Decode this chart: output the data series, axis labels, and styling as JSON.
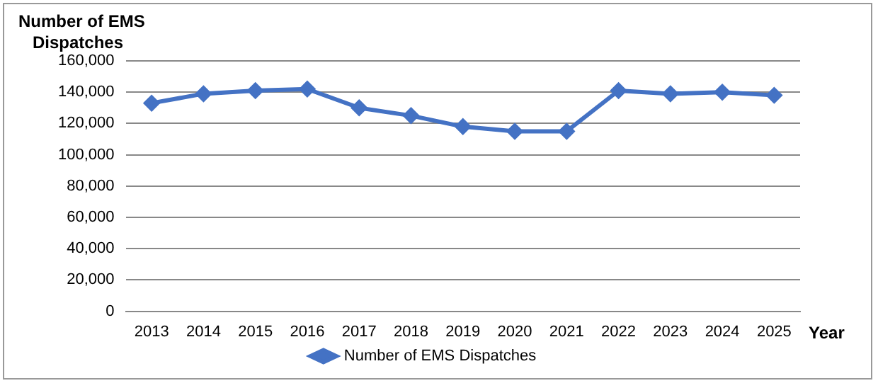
{
  "chart_data": {
    "type": "line",
    "ylabel": "Number of EMS Dispatches",
    "xlabel": "Year",
    "categories": [
      "2013",
      "2014",
      "2015",
      "2016",
      "2017",
      "2018",
      "2019",
      "2020",
      "2021",
      "2022",
      "2023",
      "2024",
      "2025"
    ],
    "series": [
      {
        "name": "Number of EMS Dispatches",
        "color": "#4472c4",
        "values": [
          133000,
          139000,
          141000,
          142000,
          130000,
          125000,
          118000,
          115000,
          115000,
          141000,
          139000,
          140000,
          138000
        ]
      }
    ],
    "ylim": [
      0,
      160000
    ],
    "yticks": [
      0,
      {
        "value": 20000,
        "label": "20,000"
      },
      {
        "value": 40000,
        "label": "40,000"
      },
      {
        "value": 60000,
        "label": "60,000"
      },
      {
        "value": 80000,
        "label": "80,000"
      },
      {
        "value": 100000,
        "label": "100,000"
      },
      {
        "value": 120000,
        "label": "120,000"
      },
      {
        "value": 140000,
        "label": "140,000"
      },
      {
        "value": 160000,
        "label": "160,000"
      }
    ],
    "grid": "y",
    "legend": "bottom",
    "marker": "diamond",
    "line_style": "solid"
  }
}
